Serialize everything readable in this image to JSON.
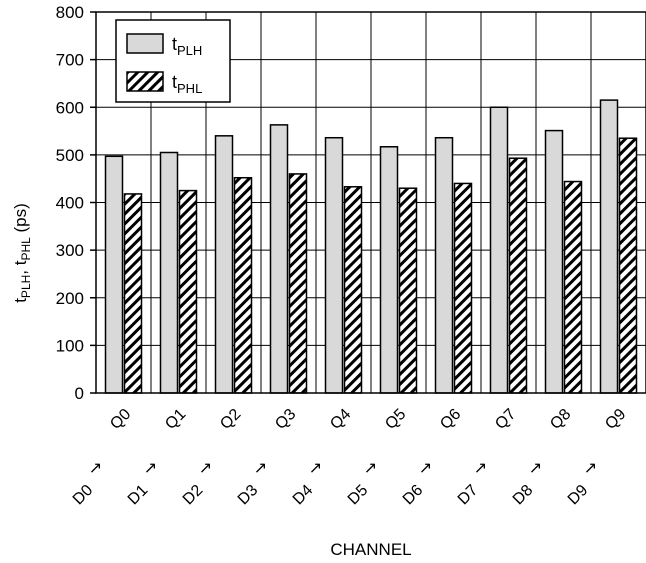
{
  "chart_data": {
    "type": "bar",
    "categories": [
      "Q0",
      "Q1",
      "Q2",
      "Q3",
      "Q4",
      "Q5",
      "Q6",
      "Q7",
      "Q8",
      "Q9"
    ],
    "source_labels": [
      "D0",
      "D1",
      "D2",
      "D3",
      "D4",
      "D5",
      "D6",
      "D7",
      "D8",
      "D9"
    ],
    "arrow_glyph": "↗",
    "series": [
      {
        "name": "tPLH",
        "name_main": "t",
        "name_sub": "PLH",
        "pattern": "solid-gray",
        "color": "#d9d9d9",
        "values": [
          497,
          505,
          540,
          563,
          536,
          517,
          536,
          600,
          551,
          615
        ]
      },
      {
        "name": "tPHL",
        "name_main": "t",
        "name_sub": "PHL",
        "pattern": "diagonal-hatch",
        "color": "#ffffff",
        "values": [
          418,
          425,
          452,
          460,
          433,
          430,
          440,
          493,
          444,
          535
        ]
      }
    ],
    "xlabel": "CHANNEL",
    "ylabel_parts": [
      {
        "text": "t",
        "sub": false
      },
      {
        "text": "PLH",
        "sub": true
      },
      {
        "text": ", t",
        "sub": false
      },
      {
        "text": "PHL",
        "sub": true
      },
      {
        "text": " (ps)",
        "sub": false
      }
    ],
    "ylim": [
      0,
      800
    ],
    "yticks": [
      0,
      100,
      200,
      300,
      400,
      500,
      600,
      700,
      800
    ],
    "grid": true,
    "legend_position": "top-left"
  }
}
